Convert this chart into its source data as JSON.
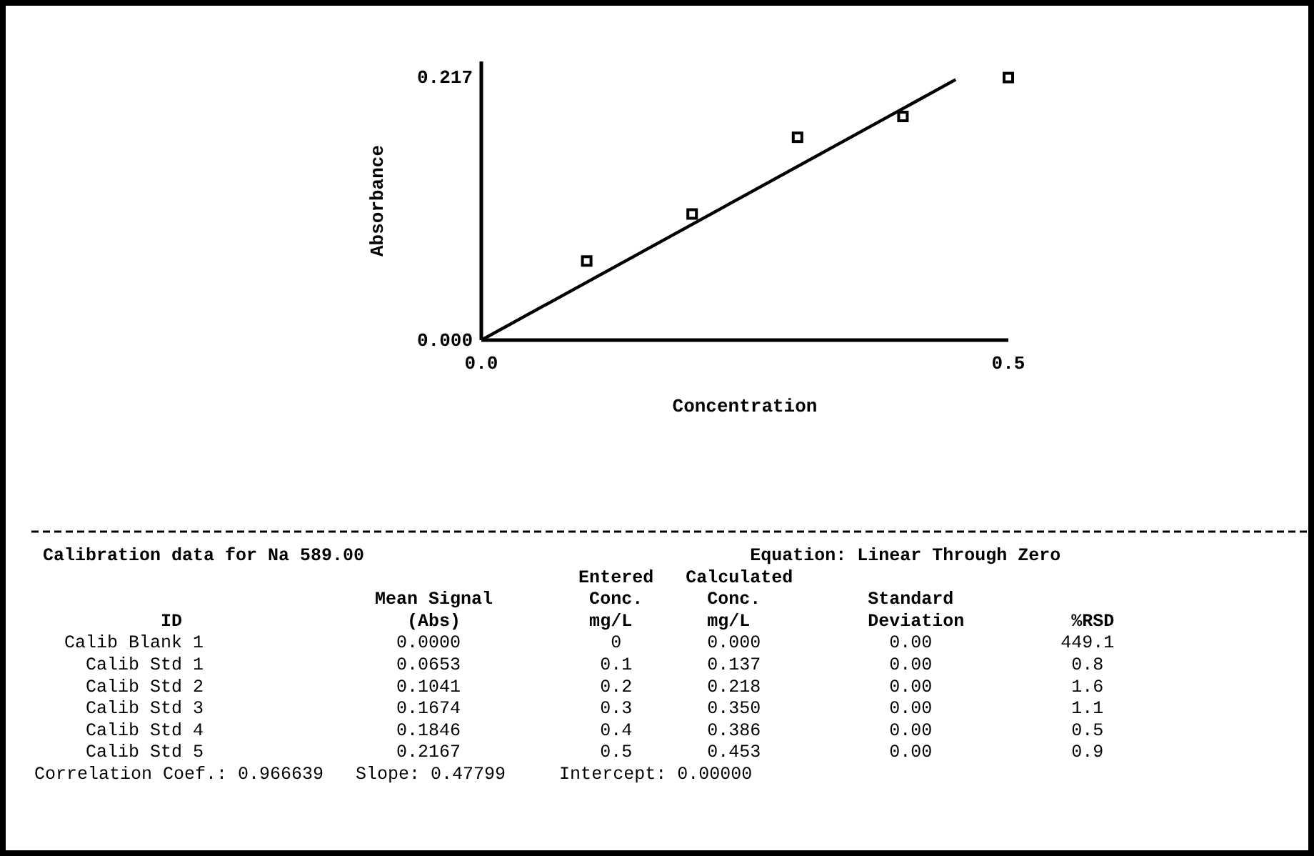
{
  "chart_data": {
    "type": "scatter",
    "xlabel": "Concentration",
    "ylabel": "Absorbance",
    "xlim": [
      0,
      0.5
    ],
    "ylim": [
      0,
      0.23
    ],
    "xticks": [
      {
        "value": 0,
        "label": "0.0"
      },
      {
        "value": 0.5,
        "label": "0.5"
      }
    ],
    "yticks": [
      {
        "value": 0,
        "label": "0.000"
      },
      {
        "value": 0.217,
        "label": "0.217"
      }
    ],
    "marker": "square",
    "series": [
      {
        "color": "#000000",
        "x": [
          0.1,
          0.2,
          0.3,
          0.4,
          0.5
        ],
        "values": [
          0.0653,
          0.1041,
          0.1674,
          0.1846,
          0.2167
        ]
      },
      {
        "type": "line",
        "marker": "none",
        "color": "#000000",
        "x": [
          0,
          0.45
        ],
        "values": [
          0,
          0.215
        ]
      }
    ],
    "annotations": [
      "Calibration data for Na 589.00                                    Equation: Linear Through Zero",
      "                                                  Entered   Calculated",
      "                               Mean Signal         Conc.      Conc.          Standard",
      "           ID                     (Abs)            mg/L       mg/L           Deviation          %RSD",
      "  Calib Blank 1                  0.0000              0        0.000            0.00            449.1",
      "    Calib Std 1                  0.0653             0.1       0.137            0.00             0.8",
      "    Calib Std 2                  0.1041             0.2       0.218            0.00             1.6",
      "    Calib Std 3                  0.1674             0.3       0.350            0.00             1.1",
      "    Calib Std 4                  0.1846             0.4       0.386            0.00             0.5",
      "    Calib Std 5                  0.2167             0.5       0.453            0.00             0.9",
      "Correlation Coef.: 0.966639   Slope: 0.47799     Intercept: 0.00000"
    ]
  }
}
